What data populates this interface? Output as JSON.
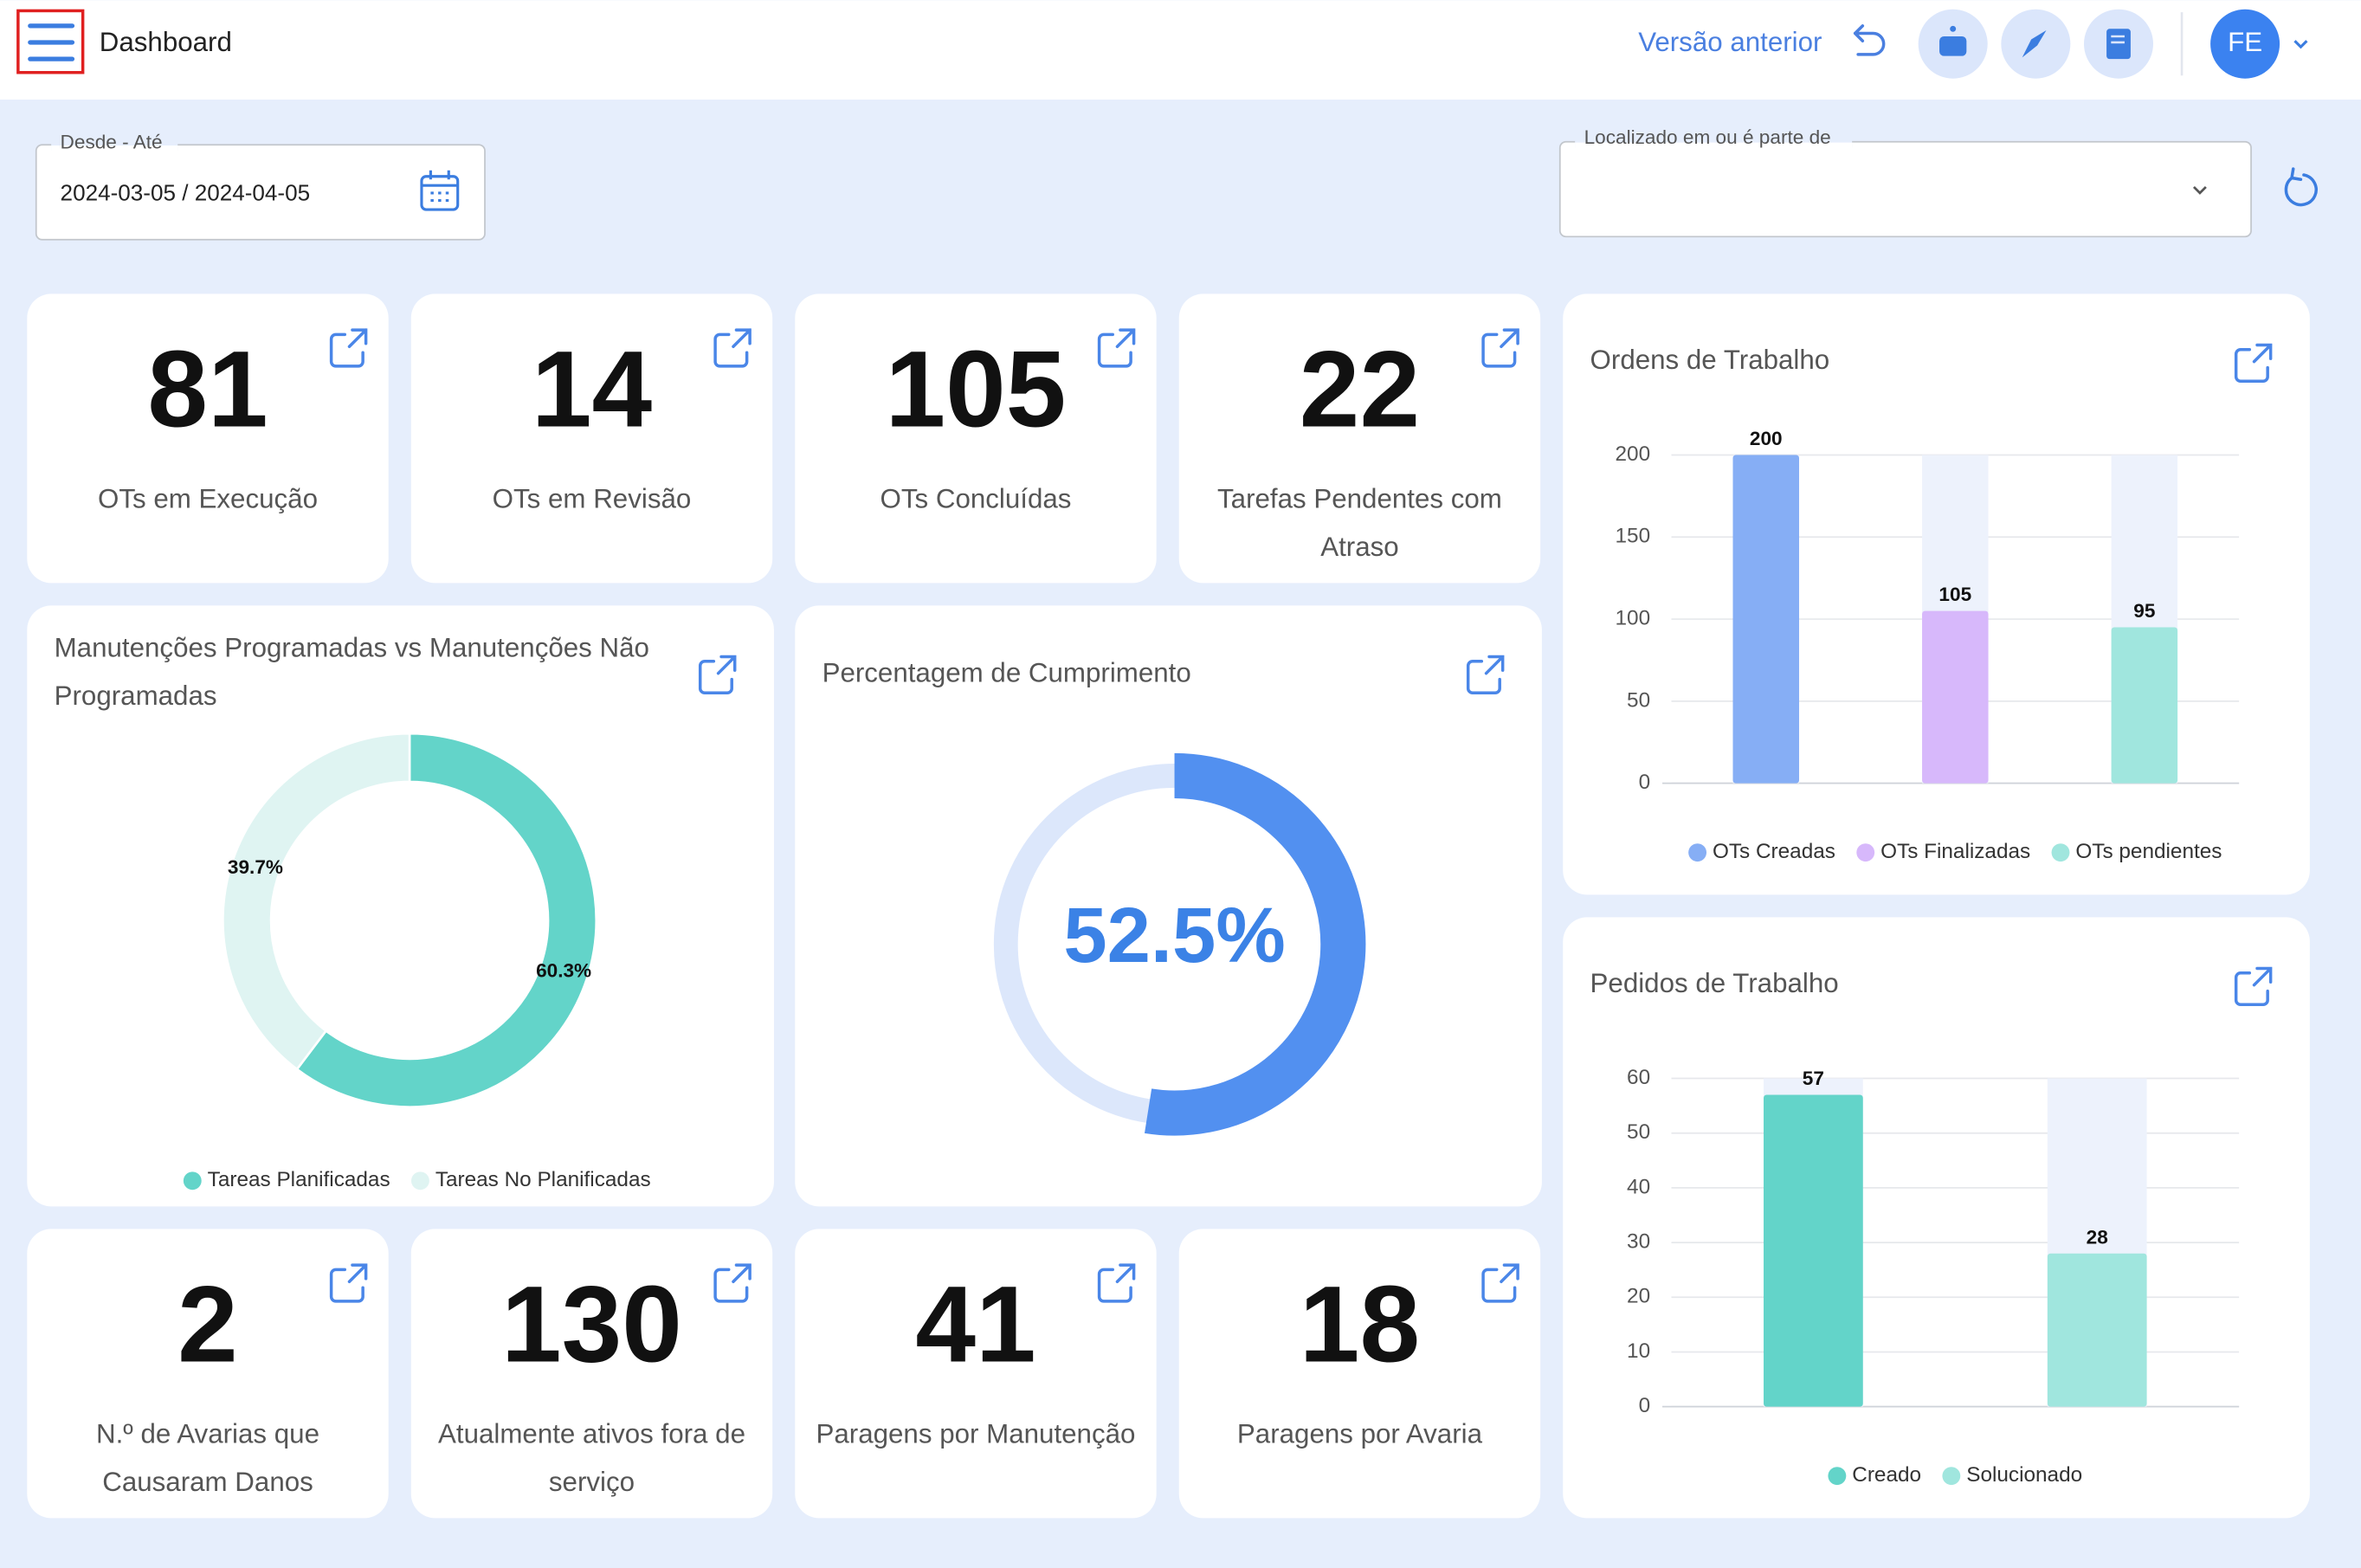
{
  "header": {
    "title": "Dashboard",
    "previous_version": "Versão anterior",
    "avatar": "FE"
  },
  "filters": {
    "date_label": "Desde - Até",
    "date_value": "2024-03-05 / 2024-04-05",
    "location_label": "Localizado em ou é parte de"
  },
  "kpis": [
    {
      "value": 81,
      "label": "OTs em Execução"
    },
    {
      "value": 14,
      "label": "OTs em Revisão"
    },
    {
      "value": 105,
      "label": "OTs Concluídas"
    },
    {
      "value": 22,
      "label": "Tarefas Pendentes com Atraso"
    },
    {
      "value": 2,
      "label": "N.º de Avarias que Causaram Danos"
    },
    {
      "value": 130,
      "label": "Atualmente ativos fora de serviço"
    },
    {
      "value": 41,
      "label": "Paragens por Manutenção"
    },
    {
      "value": 18,
      "label": "Paragens por Avaria"
    }
  ],
  "chart_data": [
    {
      "type": "pie",
      "title": "Manutenções Programadas vs Manutenções Não Programadas",
      "categories": [
        "Tareas Planificadas",
        "Tareas No Planificadas"
      ],
      "values": [
        60.3,
        39.7
      ],
      "value_labels": [
        "60.3%",
        "39.7%"
      ],
      "colors": [
        "#63d4c9",
        "#dff4f2"
      ],
      "donut": true
    },
    {
      "type": "gauge",
      "title": "Percentagem de Cumprimento",
      "values": [
        52.5
      ],
      "value_labels": [
        "52.5%"
      ],
      "color": "#5290f0",
      "track_color": "#dce7fb",
      "ylim": [
        0,
        100
      ]
    },
    {
      "type": "bar",
      "title": "Ordens de Trabalho",
      "series": [
        {
          "name": "OTs Creadas",
          "color": "#86aef5",
          "values": [
            200
          ]
        },
        {
          "name": "OTs Finalizadas",
          "color": "#d7b8fb",
          "values": [
            105
          ]
        },
        {
          "name": "OTs pendientes",
          "color": "#a0e6de",
          "values": [
            95
          ]
        }
      ],
      "ylim": [
        0,
        200
      ],
      "yticks": [
        0,
        50,
        100,
        150,
        200
      ],
      "grid": true
    },
    {
      "type": "bar",
      "title": "Pedidos de Trabalho",
      "series": [
        {
          "name": "Creado",
          "color": "#63d4c9",
          "values": [
            57
          ]
        },
        {
          "name": "Solucionado",
          "color": "#a0e6de",
          "values": [
            28
          ]
        }
      ],
      "ylim": [
        0,
        60
      ],
      "yticks": [
        0,
        10,
        20,
        30,
        40,
        50,
        60
      ],
      "grid": true
    }
  ]
}
